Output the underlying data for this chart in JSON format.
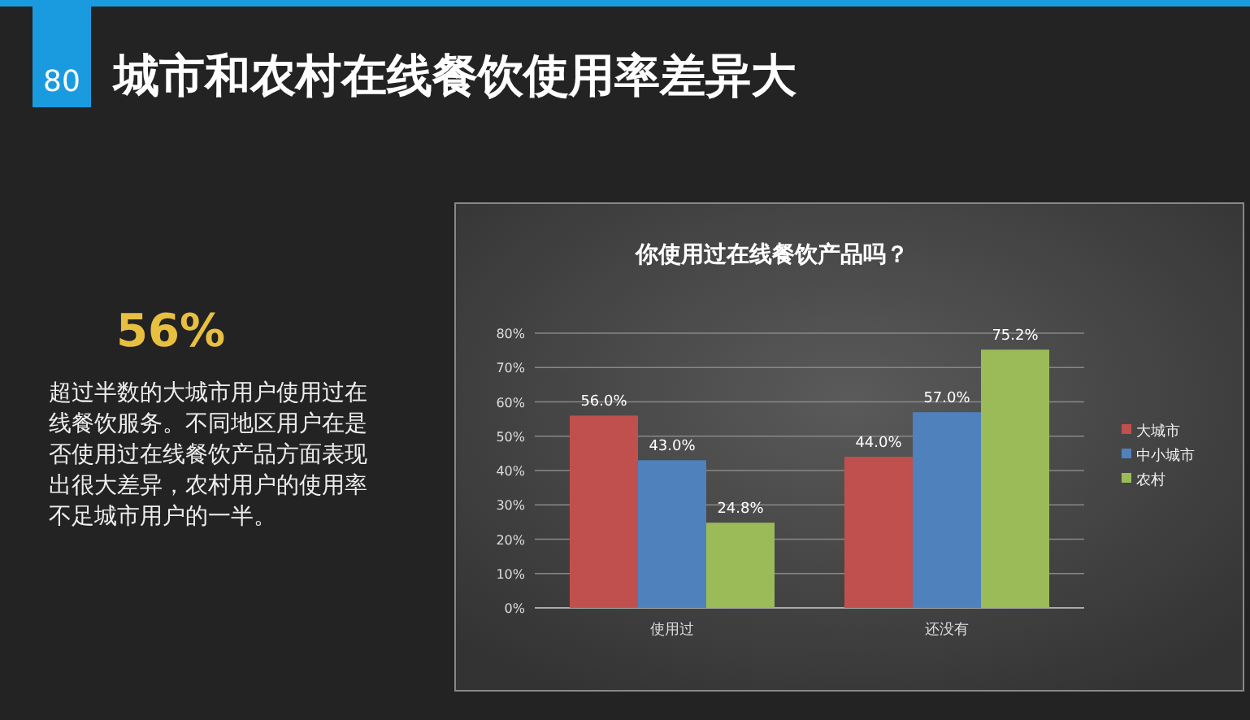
{
  "chart_data": {
    "type": "bar",
    "title": "城市和农村在线餐饮使用率差异大",
    "subtitle": "你使用过在线餐饮产品吗？",
    "categories": [
      "使用过",
      "还没有"
    ],
    "series": [
      {
        "name": "大城市",
        "color": "#c0504d",
        "values": [
          56.0,
          44.0
        ]
      },
      {
        "name": "中小城市",
        "color": "#4f81bd",
        "values": [
          43.0,
          57.0
        ]
      },
      {
        "name": "农村",
        "color": "#9bbb59",
        "values": [
          24.8,
          75.2
        ]
      }
    ],
    "ylim": [
      0,
      80
    ],
    "yticks": [
      {
        "value": 0,
        "label": "0%"
      },
      {
        "value": 10,
        "label": "10%"
      },
      {
        "value": 20,
        "label": "20%"
      },
      {
        "value": 30,
        "label": "30%"
      },
      {
        "value": 40,
        "label": "40%"
      },
      {
        "value": 50,
        "label": "50%"
      },
      {
        "value": 60,
        "label": "60%"
      },
      {
        "value": 70,
        "label": "70%"
      },
      {
        "value": 80,
        "label": "80%"
      }
    ],
    "value_labels": [
      [
        "56.0%",
        "44.0%"
      ],
      [
        "43.0%",
        "57.0%"
      ],
      [
        "24.8%",
        "75.2%"
      ]
    ],
    "grid": "y",
    "legend": "right",
    "annotations": [
      "80",
      "56%",
      "超过半数的大城市用户使用过在线餐饮服务。不同地区用户在是否使用过在线餐饮产品方面表现出很大差异，农村用户的使用率不足城市用户的一半。"
    ]
  }
}
